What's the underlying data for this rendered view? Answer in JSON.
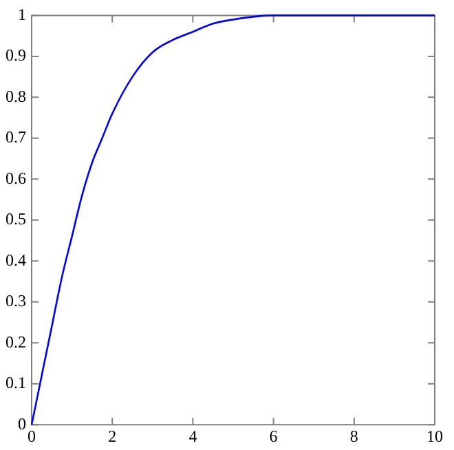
{
  "chart_data": {
    "type": "line",
    "x": [
      0,
      0.25,
      0.5,
      0.75,
      1,
      1.25,
      1.5,
      1.75,
      2,
      2.5,
      3,
      3.5,
      4,
      4.5,
      5,
      6,
      7,
      8,
      9,
      10
    ],
    "series": [
      {
        "color": "#0000ff",
        "values": [
          0,
          0.12,
          0.24,
          0.36,
          0.46,
          0.56,
          0.64,
          0.7,
          0.76,
          0.85,
          0.91,
          0.94,
          0.96,
          0.98,
          0.99,
          1,
          1,
          1,
          1,
          1
        ]
      }
    ],
    "xlim": [
      0,
      10
    ],
    "xticks": [
      0,
      2,
      4,
      6,
      8,
      10
    ],
    "ylim": [
      0,
      1
    ],
    "yticks": [
      0,
      0.1,
      0.2,
      0.3,
      0.4,
      0.5,
      0.6,
      0.7,
      0.8,
      0.9,
      1
    ],
    "grid": false,
    "legend": false,
    "marker": "none",
    "line_style": "solid"
  }
}
